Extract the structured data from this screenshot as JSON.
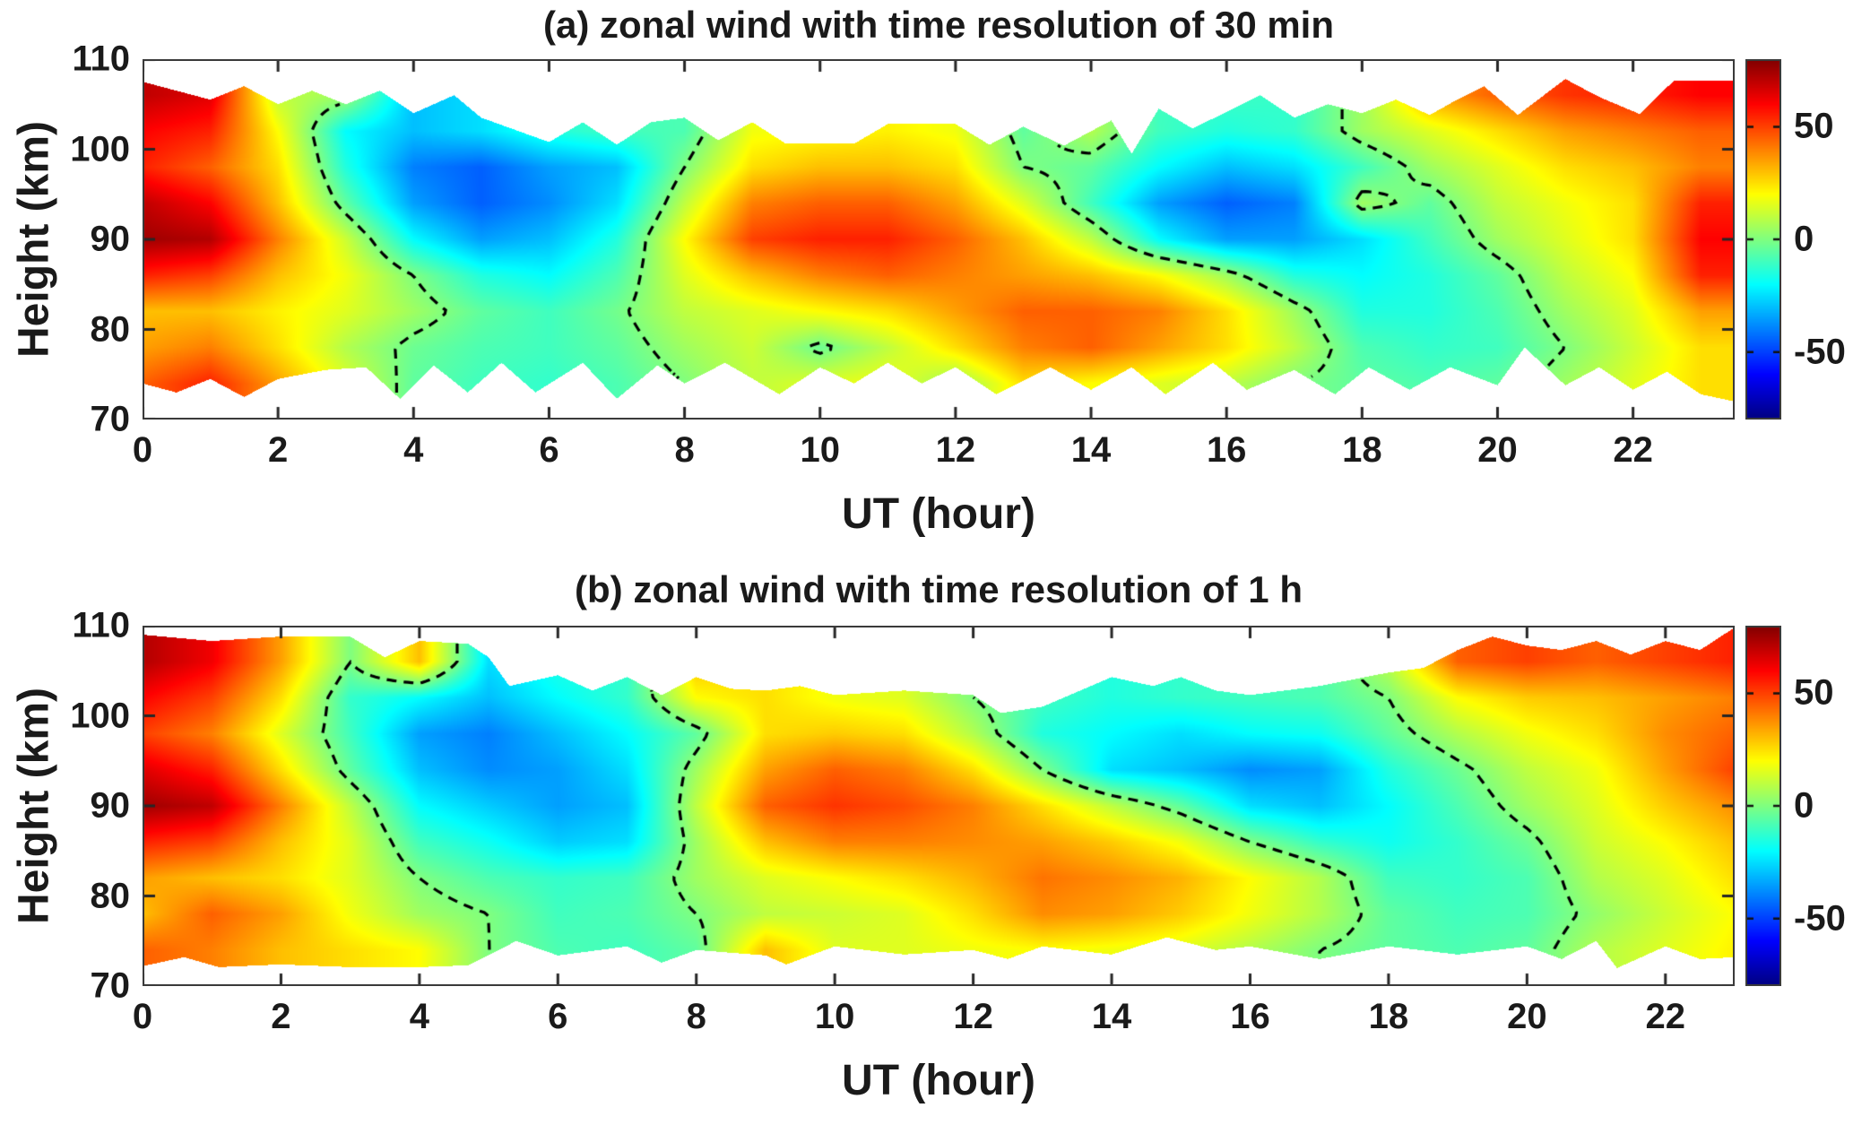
{
  "panels": [
    {
      "id": "a",
      "title": "(a) zonal wind with time resolution of 30 min",
      "xlabel": "UT (hour)",
      "ylabel": "Height (km)",
      "xticks": [
        0,
        2,
        4,
        6,
        8,
        10,
        12,
        14,
        16,
        18,
        20,
        22
      ],
      "yticks": [
        110,
        100,
        90,
        80,
        70
      ],
      "colorbar": {
        "ticks": [
          50,
          0,
          -50
        ]
      }
    },
    {
      "id": "b",
      "title": "(b) zonal wind with time resolution of 1 h",
      "xlabel": "UT (hour)",
      "ylabel": "Height (km)",
      "xticks": [
        0,
        2,
        4,
        6,
        8,
        10,
        12,
        14,
        16,
        18,
        20,
        22
      ],
      "yticks": [
        110,
        100,
        90,
        80,
        70
      ],
      "colorbar": {
        "ticks": [
          50,
          0,
          -50
        ]
      }
    }
  ],
  "chart_data": [
    {
      "type": "heatmap",
      "panel": "a",
      "title": "(a) zonal wind with time resolution of 30 min",
      "xlabel": "UT (hour)",
      "ylabel": "Height (km)",
      "xlim": [
        0,
        23.5
      ],
      "ylim": [
        70,
        110
      ],
      "caxis": [
        -80,
        80
      ],
      "colormap": "jet",
      "colorbar_ticks": [
        50,
        0,
        -50
      ],
      "contour_level": 0,
      "contour_style": "dashed-black",
      "grid": false,
      "x": [
        0,
        1,
        2,
        3,
        4,
        5,
        6,
        7,
        8,
        9,
        10,
        11,
        12,
        13,
        14,
        15,
        16,
        17,
        18,
        19,
        20,
        21,
        22,
        23
      ],
      "heights": [
        110,
        106,
        102,
        98,
        94,
        90,
        86,
        82,
        78,
        74,
        70
      ],
      "values": [
        [
          70,
          65,
          10,
          5,
          -30,
          -25,
          -15,
          -10,
          -8,
          18,
          20,
          22,
          18,
          -5,
          8,
          -10,
          -10,
          -12,
          5,
          35,
          45,
          52,
          55,
          60
        ],
        [
          70,
          65,
          10,
          5,
          -30,
          -25,
          -15,
          -10,
          -8,
          18,
          20,
          22,
          18,
          -5,
          8,
          -10,
          -10,
          -12,
          5,
          35,
          45,
          52,
          55,
          60
        ],
        [
          60,
          55,
          20,
          -20,
          -30,
          -25,
          -15,
          -10,
          -8,
          18,
          20,
          22,
          18,
          -5,
          8,
          -10,
          -15,
          -12,
          5,
          15,
          25,
          35,
          40,
          45
        ],
        [
          55,
          45,
          25,
          -15,
          -40,
          -45,
          -35,
          -30,
          0,
          25,
          30,
          30,
          25,
          0,
          -5,
          -20,
          -30,
          -25,
          -10,
          5,
          15,
          25,
          30,
          40
        ],
        [
          70,
          60,
          30,
          -5,
          -35,
          -45,
          -38,
          -25,
          10,
          40,
          45,
          45,
          35,
          15,
          -10,
          -35,
          -45,
          -40,
          5,
          -5,
          10,
          18,
          25,
          55
        ],
        [
          75,
          72,
          40,
          12,
          -20,
          -35,
          -30,
          -15,
          20,
          50,
          55,
          55,
          45,
          30,
          10,
          -20,
          -35,
          -35,
          -25,
          -10,
          5,
          15,
          25,
          60
        ],
        [
          55,
          50,
          30,
          18,
          0,
          -15,
          -20,
          -8,
          15,
          30,
          40,
          45,
          40,
          35,
          30,
          20,
          5,
          -15,
          -20,
          -15,
          -5,
          10,
          20,
          55
        ],
        [
          30,
          30,
          22,
          15,
          5,
          -5,
          -10,
          -2,
          10,
          15,
          20,
          25,
          35,
          45,
          45,
          40,
          25,
          5,
          -15,
          -15,
          -8,
          5,
          15,
          35
        ],
        [
          35,
          40,
          25,
          8,
          -3,
          -8,
          -10,
          -5,
          5,
          12,
          -3,
          10,
          25,
          40,
          45,
          35,
          25,
          10,
          -8,
          -12,
          -10,
          0,
          12,
          25
        ],
        [
          45,
          55,
          35,
          15,
          -5,
          -10,
          -12,
          -8,
          0,
          10,
          15,
          18,
          3,
          25,
          20,
          15,
          10,
          0,
          -5,
          -8,
          -5,
          5,
          15,
          25
        ],
        [
          45,
          55,
          35,
          15,
          -5,
          -10,
          -12,
          -8,
          0,
          10,
          15,
          18,
          3,
          25,
          20,
          15,
          10,
          0,
          -5,
          -8,
          -5,
          5,
          15,
          25
        ]
      ],
      "top_boundary": [
        [
          0,
          107.5
        ],
        [
          1,
          105.5
        ],
        [
          1.5,
          107
        ],
        [
          2,
          105
        ],
        [
          2.5,
          106.5
        ],
        [
          3,
          105
        ],
        [
          3.5,
          106.5
        ],
        [
          4,
          104
        ],
        [
          4.6,
          106
        ],
        [
          5,
          103.5
        ],
        [
          6,
          100.8
        ],
        [
          6.5,
          103
        ],
        [
          7,
          100.5
        ],
        [
          7.5,
          103
        ],
        [
          8,
          103.5
        ],
        [
          8.5,
          101
        ],
        [
          9,
          103
        ],
        [
          9.5,
          100.6
        ],
        [
          10.5,
          100.6
        ],
        [
          11,
          102.8
        ],
        [
          12,
          102.8
        ],
        [
          12.5,
          100.5
        ],
        [
          13,
          102.5
        ],
        [
          13.6,
          100.4
        ],
        [
          14.3,
          103.2
        ],
        [
          14.6,
          99.5
        ],
        [
          15,
          104.5
        ],
        [
          15.5,
          102.3
        ],
        [
          16.5,
          106
        ],
        [
          17,
          103.5
        ],
        [
          17.5,
          105
        ],
        [
          18,
          104
        ],
        [
          18.5,
          105.5
        ],
        [
          19,
          103.8
        ],
        [
          19.4,
          105.5
        ],
        [
          19.8,
          107
        ],
        [
          20.3,
          103.8
        ],
        [
          21,
          107.8
        ],
        [
          21.5,
          105.8
        ],
        [
          22.1,
          103.9
        ],
        [
          22.6,
          107.6
        ],
        [
          23.5,
          107.6
        ]
      ],
      "bottom_boundary": [
        [
          0,
          74
        ],
        [
          0.5,
          73
        ],
        [
          1,
          74.5
        ],
        [
          1.5,
          72.5
        ],
        [
          2,
          74.5
        ],
        [
          2.7,
          75.5
        ],
        [
          3.3,
          75.8
        ],
        [
          3.8,
          72.3
        ],
        [
          4.3,
          76
        ],
        [
          4.8,
          73
        ],
        [
          5.3,
          76.3
        ],
        [
          5.8,
          73
        ],
        [
          6.5,
          76.3
        ],
        [
          7,
          72.3
        ],
        [
          7.6,
          76
        ],
        [
          8,
          74
        ],
        [
          8.6,
          76.3
        ],
        [
          9.4,
          72.8
        ],
        [
          10,
          75.8
        ],
        [
          10.5,
          74
        ],
        [
          11,
          76.3
        ],
        [
          11.5,
          74
        ],
        [
          12,
          75.8
        ],
        [
          12.6,
          72.8
        ],
        [
          13.4,
          75.8
        ],
        [
          14,
          73.3
        ],
        [
          14.6,
          75.8
        ],
        [
          15.1,
          72.8
        ],
        [
          15.8,
          76.3
        ],
        [
          16.3,
          73.3
        ],
        [
          17,
          75.5
        ],
        [
          17.6,
          72.8
        ],
        [
          18.1,
          75.8
        ],
        [
          18.7,
          73.3
        ],
        [
          19.3,
          75.8
        ],
        [
          20,
          73.8
        ],
        [
          20.4,
          78
        ],
        [
          21,
          73.8
        ],
        [
          21.5,
          75.8
        ],
        [
          22,
          73.3
        ],
        [
          22.5,
          75.3
        ],
        [
          23,
          72.8
        ],
        [
          23.5,
          72
        ]
      ]
    },
    {
      "type": "heatmap",
      "panel": "b",
      "title": "(b) zonal wind with time resolution of 1 h",
      "xlabel": "UT (hour)",
      "ylabel": "Height (km)",
      "xlim": [
        0,
        23
      ],
      "ylim": [
        70,
        110
      ],
      "caxis": [
        -80,
        80
      ],
      "colormap": "jet",
      "colorbar_ticks": [
        50,
        0,
        -50
      ],
      "contour_level": 0,
      "contour_style": "dashed-black",
      "grid": false,
      "x": [
        0,
        1,
        2,
        3,
        4,
        5,
        6,
        7,
        8,
        9,
        10,
        11,
        12,
        13,
        14,
        15,
        16,
        17,
        18,
        19,
        20,
        21,
        22,
        23
      ],
      "heights": [
        110,
        106,
        102,
        98,
        94,
        90,
        86,
        82,
        78,
        74,
        70
      ],
      "values": [
        [
          72,
          62,
          35,
          0,
          30,
          -25,
          -15,
          -12,
          30,
          25,
          18,
          15,
          0,
          -10,
          -15,
          -12,
          -10,
          -8,
          10,
          45,
          50,
          45,
          50,
          55
        ],
        [
          72,
          62,
          35,
          0,
          30,
          -25,
          -15,
          -12,
          30,
          25,
          18,
          15,
          0,
          -10,
          -15,
          -12,
          -10,
          -8,
          10,
          45,
          50,
          45,
          50,
          55
        ],
        [
          60,
          50,
          25,
          -12,
          -20,
          -30,
          -20,
          -12,
          20,
          25,
          18,
          15,
          0,
          -10,
          -15,
          -12,
          -10,
          -8,
          0,
          20,
          28,
          30,
          35,
          40
        ],
        [
          50,
          40,
          15,
          -10,
          -35,
          -40,
          -30,
          -20,
          -5,
          25,
          28,
          25,
          8,
          -15,
          -20,
          -25,
          -20,
          -18,
          -5,
          8,
          18,
          25,
          38,
          45
        ],
        [
          65,
          55,
          25,
          -5,
          -30,
          -38,
          -35,
          -25,
          5,
          35,
          45,
          40,
          25,
          0,
          -25,
          -30,
          -38,
          -35,
          -15,
          -3,
          10,
          18,
          35,
          50
        ],
        [
          75,
          70,
          40,
          10,
          -20,
          -28,
          -35,
          -30,
          10,
          45,
          52,
          48,
          40,
          25,
          10,
          -5,
          -25,
          -30,
          -20,
          -8,
          5,
          15,
          28,
          38
        ],
        [
          55,
          50,
          30,
          15,
          -10,
          -18,
          -28,
          -25,
          5,
          30,
          40,
          40,
          38,
          35,
          28,
          18,
          0,
          -12,
          -18,
          -12,
          -3,
          12,
          20,
          30
        ],
        [
          35,
          30,
          25,
          15,
          0,
          -8,
          -12,
          -10,
          5,
          15,
          20,
          25,
          32,
          42,
          38,
          32,
          20,
          8,
          -10,
          -12,
          -8,
          8,
          15,
          25
        ],
        [
          30,
          45,
          35,
          18,
          5,
          0,
          -10,
          -8,
          0,
          10,
          12,
          15,
          25,
          38,
          35,
          28,
          18,
          8,
          -5,
          -10,
          -8,
          3,
          12,
          20
        ],
        [
          45,
          40,
          30,
          25,
          20,
          0,
          -8,
          -10,
          -5,
          30,
          15,
          15,
          18,
          20,
          18,
          15,
          8,
          0,
          -5,
          -8,
          -5,
          8,
          15,
          22
        ],
        [
          45,
          40,
          30,
          25,
          20,
          0,
          -8,
          -10,
          -5,
          30,
          15,
          15,
          18,
          20,
          18,
          15,
          8,
          0,
          -5,
          -8,
          -5,
          8,
          15,
          22
        ]
      ],
      "top_boundary": [
        [
          0,
          109
        ],
        [
          1,
          108.3
        ],
        [
          2,
          108.8
        ],
        [
          3,
          108.8
        ],
        [
          3.5,
          106.5
        ],
        [
          4,
          108.3
        ],
        [
          4.7,
          108
        ],
        [
          5,
          106.5
        ],
        [
          5.3,
          103.3
        ],
        [
          6,
          104.5
        ],
        [
          6.5,
          102.8
        ],
        [
          7,
          104.3
        ],
        [
          7.5,
          102.3
        ],
        [
          8,
          104.3
        ],
        [
          8.5,
          103
        ],
        [
          9,
          102.8
        ],
        [
          9.5,
          103.3
        ],
        [
          10,
          102.3
        ],
        [
          11,
          102.8
        ],
        [
          12,
          102.3
        ],
        [
          12.4,
          100.3
        ],
        [
          13,
          101
        ],
        [
          14,
          104.3
        ],
        [
          14.6,
          103.3
        ],
        [
          15,
          104.3
        ],
        [
          15.5,
          102.8
        ],
        [
          16,
          102.3
        ],
        [
          17,
          103.3
        ],
        [
          18,
          104.8
        ],
        [
          18.5,
          105.3
        ],
        [
          19,
          107.3
        ],
        [
          19.5,
          108.8
        ],
        [
          20,
          107.8
        ],
        [
          20.5,
          107.3
        ],
        [
          21,
          108.3
        ],
        [
          21.5,
          106.8
        ],
        [
          22,
          108.3
        ],
        [
          22.5,
          107.3
        ],
        [
          23,
          109.8
        ]
      ],
      "bottom_boundary": [
        [
          0,
          72.2
        ],
        [
          0.6,
          73.2
        ],
        [
          1.1,
          72.1
        ],
        [
          2,
          72.4
        ],
        [
          3,
          72.1
        ],
        [
          4,
          72.1
        ],
        [
          4.7,
          72.3
        ],
        [
          5.4,
          75
        ],
        [
          6,
          73.4
        ],
        [
          7,
          74.4
        ],
        [
          7.5,
          72.6
        ],
        [
          8,
          74
        ],
        [
          9,
          73.4
        ],
        [
          9.3,
          72.4
        ],
        [
          10,
          74.4
        ],
        [
          11,
          73.5
        ],
        [
          12,
          74
        ],
        [
          12.5,
          73
        ],
        [
          13,
          74.4
        ],
        [
          14,
          73.5
        ],
        [
          14.8,
          75.4
        ],
        [
          15.5,
          74
        ],
        [
          16,
          74.4
        ],
        [
          17,
          73
        ],
        [
          18,
          74.4
        ],
        [
          19,
          73.5
        ],
        [
          20,
          74.4
        ],
        [
          20.5,
          73
        ],
        [
          21,
          75
        ],
        [
          21.3,
          72
        ],
        [
          22,
          74.4
        ],
        [
          22.5,
          73
        ],
        [
          23,
          73.2
        ]
      ]
    }
  ]
}
